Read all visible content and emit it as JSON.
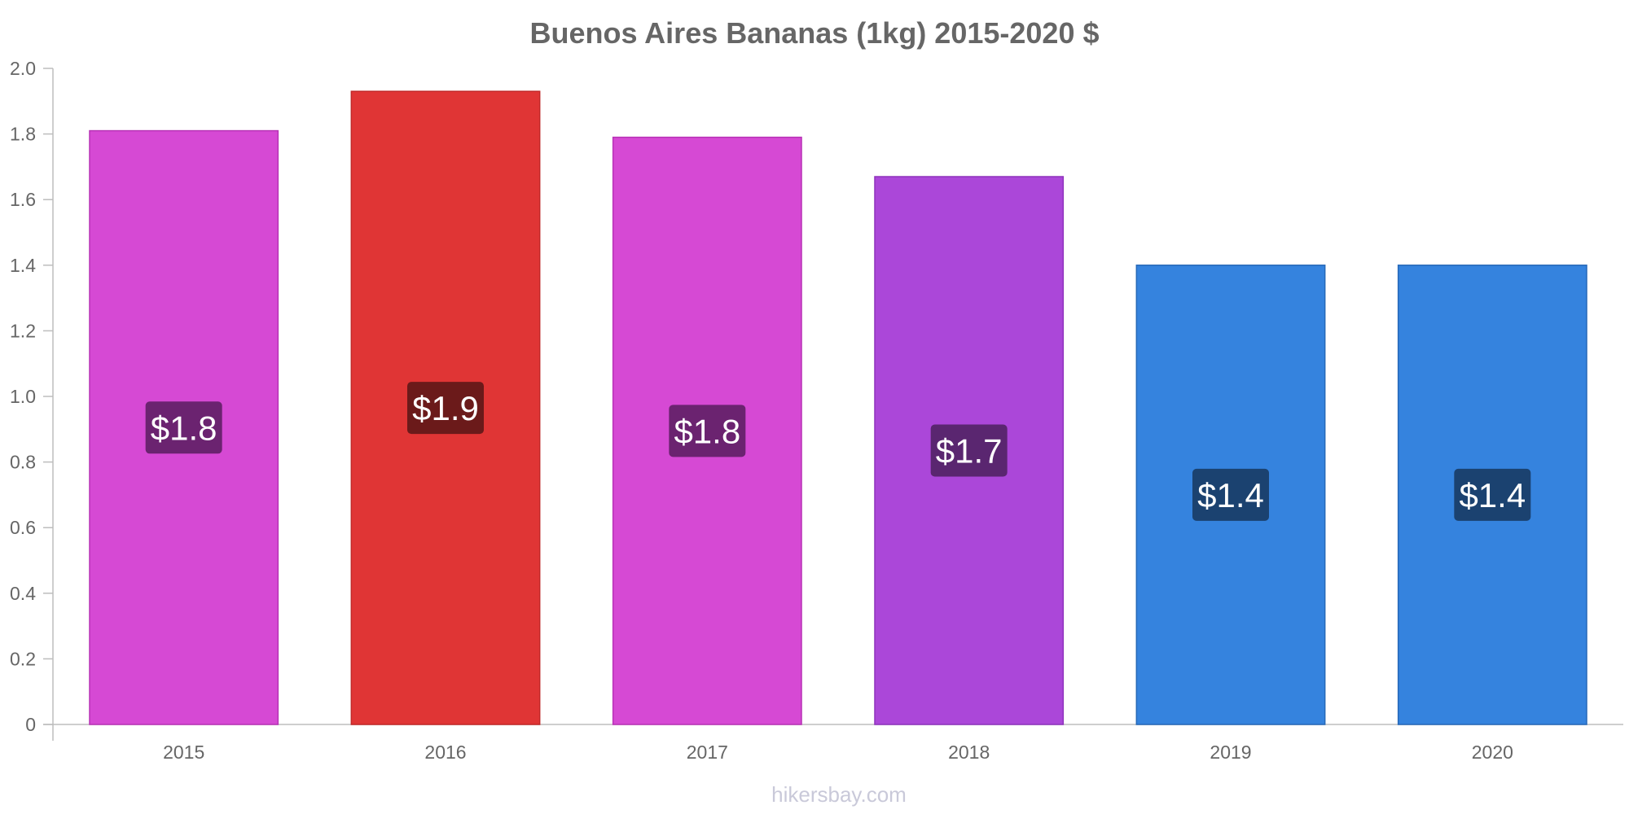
{
  "chart_data": {
    "type": "bar",
    "title": "Buenos Aires Bananas (1kg) 2015-2020 $",
    "categories": [
      "2015",
      "2016",
      "2017",
      "2018",
      "2019",
      "2020"
    ],
    "values": [
      1.81,
      1.93,
      1.79,
      1.67,
      1.4,
      1.4
    ],
    "value_labels": [
      "$1.8",
      "$1.9",
      "$1.8",
      "$1.7",
      "$1.4",
      "$1.4"
    ],
    "bar_colors": [
      "#d649d4",
      "#e03535",
      "#d649d4",
      "#ab47d9",
      "#3583de",
      "#3583de"
    ],
    "bar_border_colors": [
      "#b832b6",
      "#c22828",
      "#b832b6",
      "#8f33bd",
      "#2668b8",
      "#2668b8"
    ],
    "label_bg_colors": [
      "#6b2370",
      "#6b1a1a",
      "#6b2370",
      "#5a2670",
      "#1b4270",
      "#1b4270"
    ],
    "ylim": [
      0,
      2.0
    ],
    "yticks": [
      "0",
      "0.2",
      "0.4",
      "0.6",
      "0.8",
      "1.0",
      "1.2",
      "1.4",
      "1.6",
      "1.8",
      "2.0"
    ],
    "ytick_values": [
      0,
      0.2,
      0.4,
      0.6,
      0.8,
      1.0,
      1.2,
      1.4,
      1.6,
      1.8,
      2.0
    ],
    "grid": false,
    "xlabel": "",
    "ylabel": ""
  },
  "footer": {
    "source": "hikersbay.com"
  }
}
